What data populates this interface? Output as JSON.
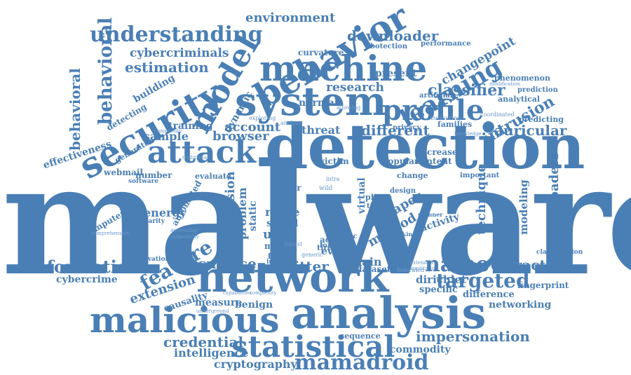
{
  "words": {
    "malware": "malware",
    "detection": "detection",
    "network": "network",
    "analysis": "analysis",
    "system": "system",
    "machine": "machine",
    "behavior": "behavior",
    "security": "security",
    "model": "model",
    "learning": "learning",
    "profile": "profile",
    "attack": "attack",
    "malicious": "malicious",
    "statistical": "statistical",
    "mamadroid": "mamadroid",
    "understanding": "understanding",
    "information": "information",
    "feature": "feature",
    "name": "name",
    "targeted": "targeted",
    "extraction": "extraction",
    "twitter": "twitter",
    "surface": "surface",
    "classifier": "classifier",
    "intrusion": "intrusion",
    "auricular": "auricular",
    "browser": "browser",
    "behavioral": "behavioral",
    "downloader": "downloader",
    "downloaders": "downloaders",
    "environment": "environment",
    "cybercriminals": "cybercriminals",
    "estimation": "estimation",
    "changepoint": "changepoint",
    "research": "research",
    "different": "different",
    "method": "method",
    "extension": "extension",
    "credential": "credential",
    "impersonation": "impersonation",
    "intelligence": "intelligence",
    "cryptography": "cryptography",
    "commodity": "commodity",
    "dirichlet": "dirichlet",
    "specific": "specific",
    "difference": "difference",
    "networking": "networking",
    "fingerprint": "fingerprint",
    "cybercrime": "cybercrime",
    "causality": "causality",
    "measure": "measure",
    "benign": "benign",
    "chain": "chain",
    "event": "event",
    "dataset": "dataset",
    "paper": "paper",
    "activity": "activity",
    "technique": "technique",
    "modeling": "modeling",
    "user": "user",
    "reuse": "reuse",
    "social": "social",
    "major": "major",
    "family": "family",
    "action": "action",
    "tiresias": "tiresias",
    "traffic": "traffic",
    "forest": "forest",
    "detect": "detect",
    "predict": "predict",
    "design": "design",
    "phone": "phone",
    "more": "more",
    "app": "app",
    "tool": "tool",
    "title": "title",
    "error": "error",
    "evasion": "evasion",
    "problem": "problem",
    "account": "account",
    "threat": "threat",
    "normal": "normal",
    "energy": "energy",
    "evaluate": "evaluate",
    "number": "number",
    "software": "software",
    "webmail": "webmail",
    "computer": "computer",
    "popularity": "popularity",
    "sample": "sample",
    "generator": "generator",
    "effectiveness": "effectiveness",
    "training": "training",
    "detecting": "detecting",
    "building": "building",
    "dynamic": "dynamic",
    "curvature": "curvature",
    "botection": "botection",
    "performance": "performance",
    "present": "present",
    "phenomenon": "phenomenon",
    "prediction": "prediction",
    "analytical": "analytical",
    "artificial": "artificial",
    "predicting": "predicting",
    "families": "families",
    "privacy": "privacy",
    "decrease": "decrease",
    "content": "content",
    "popular": "popular",
    "victim": "victim",
    "change": "change",
    "important": "important",
    "classification": "classification",
    "observation": "observation",
    "internet": "internet",
    "sequence": "sequence",
    "automated": "automated",
    "virtual": "virtual",
    "static": "static",
    "community": "community",
    "assessing": "assessing",
    "subjectivity": "subjectivity",
    "comprehensive": "comprehensive",
    "extended": "extended",
    "scanner": "scanner",
    "adversary": "adversary",
    "modification": "modification",
    "knowledge": "knowledge",
    "coordinated": "coordinated",
    "federated": "federated",
    "application": "application",
    "underground": "underground",
    "capabilities": "capabilities",
    "complexity": "complexity",
    "generic": "generic",
    "robust": "robust",
    "making": "making",
    "measuring": "measuring",
    "analyze": "analyze",
    "exploring": "exploring",
    "intra": "intra",
    "wild": "wild",
    "allowing": "allowing",
    "traditional": "traditional"
  }
}
